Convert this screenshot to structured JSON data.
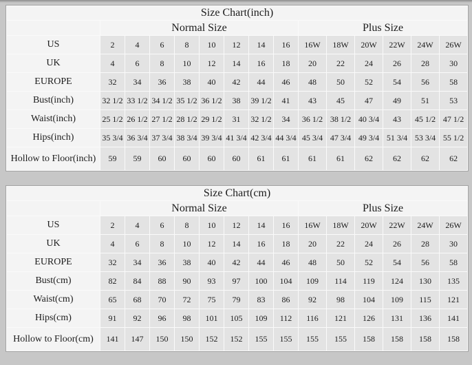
{
  "colors": {
    "page_background": "#c7c7c7",
    "cell_background": "#e3e3e3",
    "header_background": "#f4f4f4",
    "frame_border": "#a3a3a3",
    "text": "#1c1c1c"
  },
  "chart_data": [
    {
      "type": "table",
      "title": "Size Chart(inch)",
      "group_headers": [
        "Normal Size",
        "Plus Size"
      ],
      "normal_col_count": 8,
      "plus_col_count": 6,
      "rows": [
        {
          "label": "US",
          "values": [
            "2",
            "4",
            "6",
            "8",
            "10",
            "12",
            "14",
            "16",
            "16W",
            "18W",
            "20W",
            "22W",
            "24W",
            "26W"
          ]
        },
        {
          "label": "UK",
          "values": [
            "4",
            "6",
            "8",
            "10",
            "12",
            "14",
            "16",
            "18",
            "20",
            "22",
            "24",
            "26",
            "28",
            "30"
          ]
        },
        {
          "label": "EUROPE",
          "values": [
            "32",
            "34",
            "36",
            "38",
            "40",
            "42",
            "44",
            "46",
            "48",
            "50",
            "52",
            "54",
            "56",
            "58"
          ]
        },
        {
          "label": "Bust(inch)",
          "values": [
            "32 1/2",
            "33 1/2",
            "34 1/2",
            "35 1/2",
            "36 1/2",
            "38",
            "39 1/2",
            "41",
            "43",
            "45",
            "47",
            "49",
            "51",
            "53"
          ]
        },
        {
          "label": "Waist(inch)",
          "values": [
            "25 1/2",
            "26 1/2",
            "27 1/2",
            "28 1/2",
            "29 1/2",
            "31",
            "32 1/2",
            "34",
            "36 1/2",
            "38 1/2",
            "40 3/4",
            "43",
            "45 1/2",
            "47 1/2"
          ]
        },
        {
          "label": "Hips(inch)",
          "values": [
            "35 3/4",
            "36 3/4",
            "37 3/4",
            "38 3/4",
            "39 3/4",
            "41 3/4",
            "42 3/4",
            "44 3/4",
            "45 3/4",
            "47 3/4",
            "49 3/4",
            "51 3/4",
            "53 3/4",
            "55 1/2"
          ]
        },
        {
          "label": "Hollow to Floor(inch)",
          "values": [
            "59",
            "59",
            "60",
            "60",
            "60",
            "60",
            "61",
            "61",
            "61",
            "61",
            "62",
            "62",
            "62",
            "62"
          ]
        }
      ]
    },
    {
      "type": "table",
      "title": "Size Chart(cm)",
      "group_headers": [
        "Normal Size",
        "Plus Size"
      ],
      "normal_col_count": 8,
      "plus_col_count": 6,
      "rows": [
        {
          "label": "US",
          "values": [
            "2",
            "4",
            "6",
            "8",
            "10",
            "12",
            "14",
            "16",
            "16W",
            "18W",
            "20W",
            "22W",
            "24W",
            "26W"
          ]
        },
        {
          "label": "UK",
          "values": [
            "4",
            "6",
            "8",
            "10",
            "12",
            "14",
            "16",
            "18",
            "20",
            "22",
            "24",
            "26",
            "28",
            "30"
          ]
        },
        {
          "label": "EUROPE",
          "values": [
            "32",
            "34",
            "36",
            "38",
            "40",
            "42",
            "44",
            "46",
            "48",
            "50",
            "52",
            "54",
            "56",
            "58"
          ]
        },
        {
          "label": "Bust(cm)",
          "values": [
            "82",
            "84",
            "88",
            "90",
            "93",
            "97",
            "100",
            "104",
            "109",
            "114",
            "119",
            "124",
            "130",
            "135"
          ]
        },
        {
          "label": "Waist(cm)",
          "values": [
            "65",
            "68",
            "70",
            "72",
            "75",
            "79",
            "83",
            "86",
            "92",
            "98",
            "104",
            "109",
            "115",
            "121"
          ]
        },
        {
          "label": "Hips(cm)",
          "values": [
            "91",
            "92",
            "96",
            "98",
            "101",
            "105",
            "109",
            "112",
            "116",
            "121",
            "126",
            "131",
            "136",
            "141"
          ]
        },
        {
          "label": "Hollow to Floor(cm)",
          "values": [
            "141",
            "147",
            "150",
            "150",
            "152",
            "152",
            "155",
            "155",
            "155",
            "155",
            "158",
            "158",
            "158",
            "158"
          ]
        }
      ]
    }
  ]
}
